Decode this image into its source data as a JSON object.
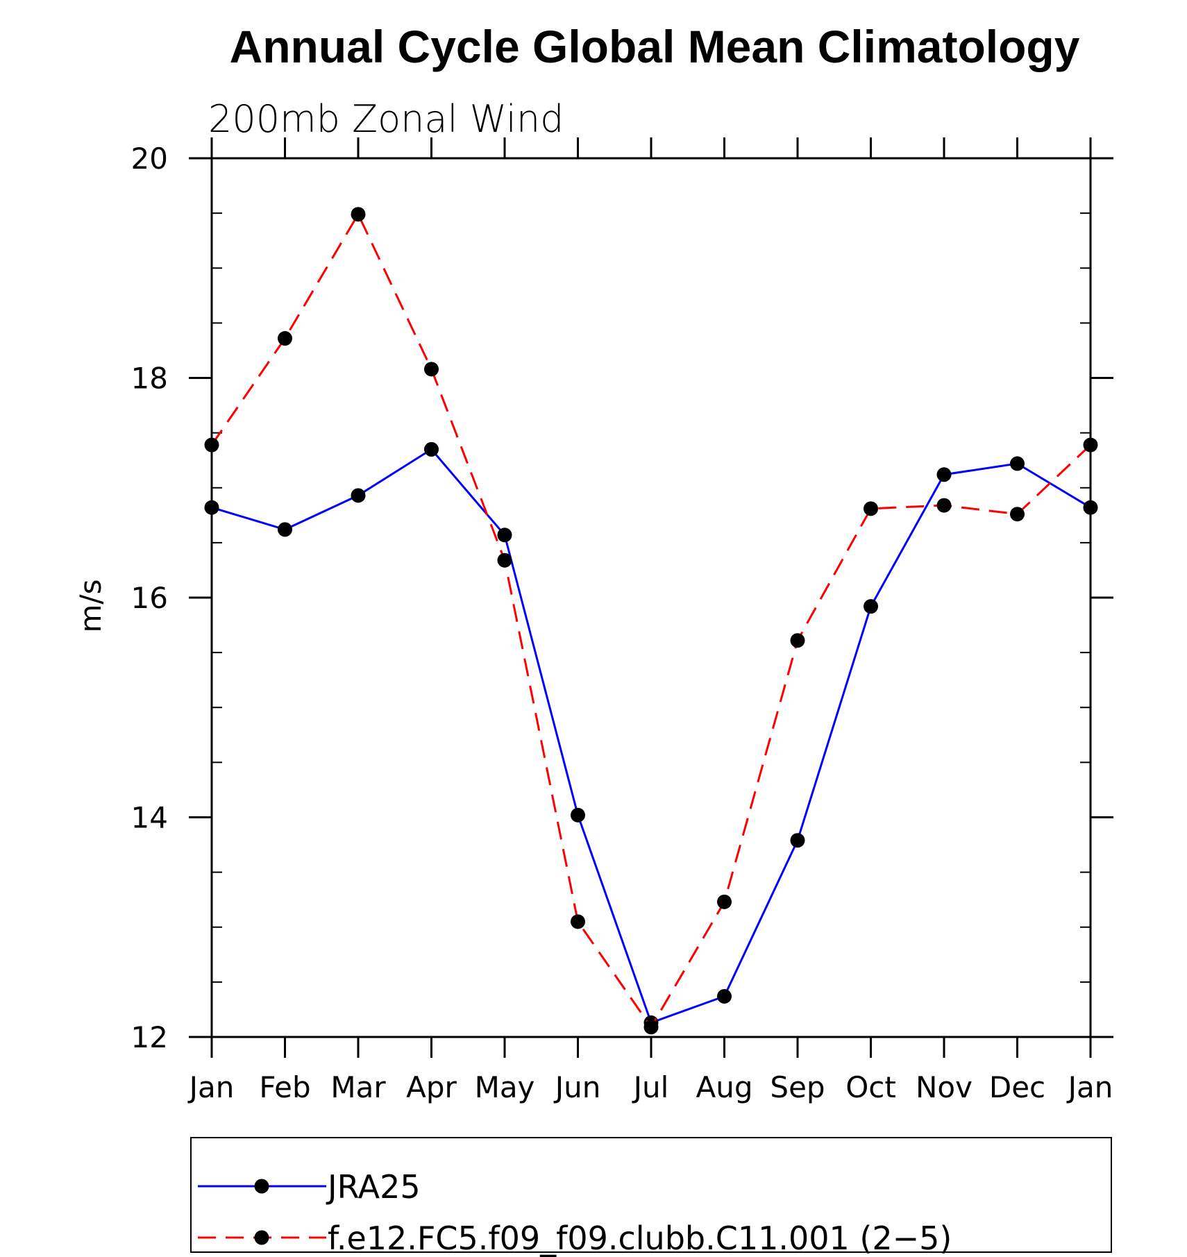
{
  "chart_data": {
    "type": "line",
    "title": "Annual Cycle Global Mean Climatology",
    "subtitle": "200mb Zonal Wind",
    "ylabel": "m/s",
    "xlabel": "",
    "categories": [
      "Jan",
      "Feb",
      "Mar",
      "Apr",
      "May",
      "Jun",
      "Jul",
      "Aug",
      "Sep",
      "Oct",
      "Nov",
      "Dec",
      "Jan"
    ],
    "ylim": [
      12,
      20
    ],
    "yticks": [
      "12",
      "14",
      "16",
      "18",
      "20"
    ],
    "grid": false,
    "legend_position": "bottom",
    "series": [
      {
        "name": "JRA25",
        "color": "#0000ff",
        "dash": "solid",
        "marker": "circle",
        "values": [
          16.82,
          16.62,
          16.93,
          17.35,
          16.57,
          14.02,
          12.13,
          12.37,
          13.79,
          15.92,
          17.12,
          17.22,
          16.82
        ]
      },
      {
        "name": "f.e12.FC5.f09_f09.clubb.C11.001 (2−5)",
        "color": "#ff0000",
        "dash": "dashed",
        "marker": "circle",
        "values": [
          17.39,
          18.36,
          19.49,
          18.08,
          16.34,
          13.05,
          12.09,
          13.23,
          15.61,
          16.81,
          16.84,
          16.76,
          17.39
        ]
      }
    ]
  }
}
